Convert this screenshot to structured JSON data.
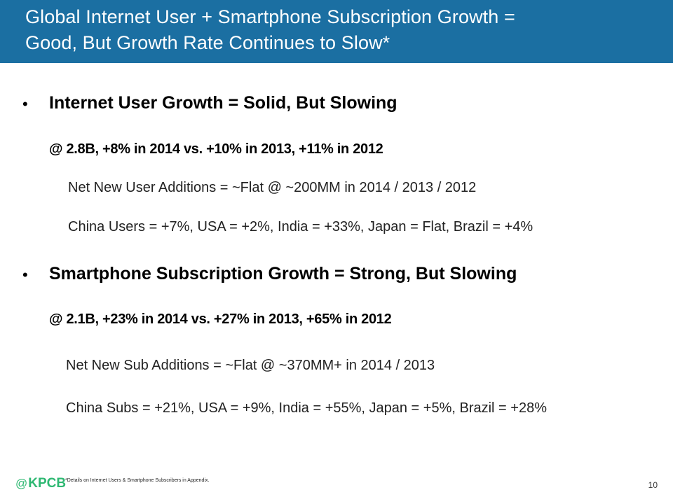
{
  "title": {
    "line1": "Global Internet User + Smartphone Subscription Growth =",
    "line2": "Good, But Growth Rate Continues to Slow*"
  },
  "bullet_char": "•",
  "sections": [
    {
      "heading": "Internet User Growth = Solid, But Slowing",
      "stat": "@ 2.8B, +8% in 2014 vs. +10% in 2013, +11% in 2012",
      "details": [
        "Net New User Additions = ~Flat @ ~200MM in 2014 / 2013 / 2012",
        "China Users = +7%, USA = +2%, India = +33%, Japan = Flat, Brazil = +4%"
      ]
    },
    {
      "heading": "Smartphone Subscription Growth = Strong, But Slowing",
      "stat": "@ 2.1B, +23% in 2014 vs. +27% in 2013, +65% in 2012",
      "details": [
        "Net New Sub Additions = ~Flat @ ~370MM+ in 2014 / 2013",
        "China Subs = +21%, USA = +9%, India = +55%, Japan = +5%, Brazil = +28%"
      ]
    }
  ],
  "footer": {
    "logo_at": "@",
    "logo_text": "KPCB",
    "footnote": "*Details on Internet Users & Smartphone Subscribers in Appendix.",
    "page_number": "10"
  },
  "colors": {
    "title_bar": "#1b6fa2",
    "title_text": "#ffffff",
    "logo": "#2eb872"
  }
}
